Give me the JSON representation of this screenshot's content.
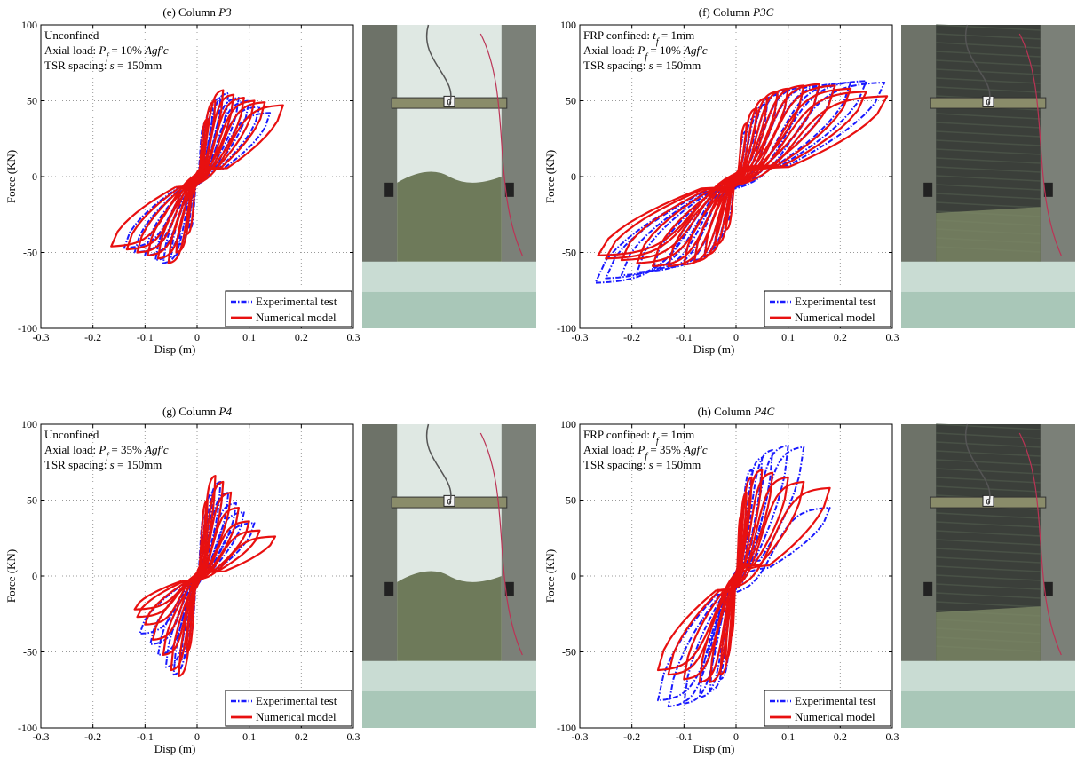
{
  "figure": {
    "panels": [
      {
        "title_prefix": "(e)  Column ",
        "title_name": "P3",
        "annotation_lines": [
          [
            {
              "t": "Unconfined"
            }
          ],
          [
            {
              "t": "Axial load: "
            },
            {
              "t": "P",
              "i": true
            },
            {
              "t": "f",
              "sub": true,
              "i": true
            },
            {
              "t": " = 10% "
            },
            {
              "t": "Agf'c",
              "i": true
            }
          ],
          [
            {
              "t": "TSR spacing: "
            },
            {
              "t": "s",
              "i": true
            },
            {
              "t": " = 150mm"
            }
          ]
        ],
        "legend": [
          "Experimental test",
          "Numerical model"
        ],
        "photo_label": "0"
      },
      {
        "title_prefix": "(f)  Column ",
        "title_name": "P3C",
        "annotation_lines": [
          [
            {
              "t": "FRP confined: "
            },
            {
              "t": "t",
              "i": true
            },
            {
              "t": "f",
              "sub": true,
              "i": true
            },
            {
              "t": " = 1mm"
            }
          ],
          [
            {
              "t": "Axial load: "
            },
            {
              "t": "P",
              "i": true
            },
            {
              "t": "f",
              "sub": true,
              "i": true
            },
            {
              "t": " = 10% "
            },
            {
              "t": "Agf'c",
              "i": true
            }
          ],
          [
            {
              "t": "TSR spacing: "
            },
            {
              "t": "s",
              "i": true
            },
            {
              "t": " = 150mm"
            }
          ]
        ],
        "legend": [
          "Experimental test",
          "Numerical model"
        ],
        "photo_label": "0"
      },
      {
        "title_prefix": "(g)  Column ",
        "title_name": "P4",
        "annotation_lines": [
          [
            {
              "t": "Unconfined"
            }
          ],
          [
            {
              "t": "Axial load: "
            },
            {
              "t": "P",
              "i": true
            },
            {
              "t": "f",
              "sub": true,
              "i": true
            },
            {
              "t": " = 35% "
            },
            {
              "t": "Agf'c",
              "i": true
            }
          ],
          [
            {
              "t": "TSR spacing: "
            },
            {
              "t": "s",
              "i": true
            },
            {
              "t": " = 150mm"
            }
          ]
        ],
        "legend": [
          "Experimental test",
          "Numerical model"
        ],
        "photo_label": "0"
      },
      {
        "title_prefix": "(h)  Column ",
        "title_name": "P4C",
        "annotation_lines": [
          [
            {
              "t": "FRP confined: "
            },
            {
              "t": "t",
              "i": true
            },
            {
              "t": "f",
              "sub": true,
              "i": true
            },
            {
              "t": " = 1mm"
            }
          ],
          [
            {
              "t": "Axial load: "
            },
            {
              "t": "P",
              "i": true
            },
            {
              "t": "f",
              "sub": true,
              "i": true
            },
            {
              "t": " = 35% "
            },
            {
              "t": "Agf'c",
              "i": true
            }
          ],
          [
            {
              "t": "TSR spacing: "
            },
            {
              "t": "s",
              "i": true
            },
            {
              "t": " = 150mm"
            }
          ]
        ],
        "legend": [
          "Experimental test",
          "Numerical model"
        ],
        "photo_label": "0"
      }
    ]
  },
  "colors": {
    "experimental": "#1a1aff",
    "numerical": "#e81010",
    "concrete": "#dfe8e3",
    "frp_wrap": "#3b3f3a",
    "floor": "#c9dcd3"
  },
  "chart_data": [
    {
      "type": "line",
      "title": "(e) Column P3",
      "xlabel": "Disp (m)",
      "ylabel": "Force (KN)",
      "xlim": [
        -0.3,
        0.3
      ],
      "ylim": [
        -100,
        100
      ],
      "xticks": [
        -0.3,
        -0.2,
        -0.1,
        0,
        0.1,
        0.2,
        0.3
      ],
      "yticks": [
        -100,
        -50,
        0,
        50,
        100
      ],
      "grid": true,
      "legend_position": "bottom-right",
      "series": [
        {
          "name": "Experimental test",
          "style": "dash-dot",
          "cycles": [
            [
              0.015,
              35,
              -0.015,
              -35
            ],
            [
              0.03,
              45,
              -0.035,
              -45
            ],
            [
              0.045,
              52,
              -0.05,
              -53
            ],
            [
              0.06,
              55,
              -0.065,
              -57
            ],
            [
              0.08,
              52,
              -0.08,
              -55
            ],
            [
              0.1,
              50,
              -0.1,
              -52
            ],
            [
              0.12,
              46,
              -0.12,
              -50
            ],
            [
              0.14,
              42,
              -0.14,
              -47
            ]
          ]
        },
        {
          "name": "Numerical model",
          "style": "solid",
          "cycles": [
            [
              0.02,
              38,
              -0.02,
              -38
            ],
            [
              0.035,
              50,
              -0.04,
              -50
            ],
            [
              0.05,
              57,
              -0.055,
              -57
            ],
            [
              0.07,
              54,
              -0.075,
              -54
            ],
            [
              0.09,
              52,
              -0.095,
              -52
            ],
            [
              0.11,
              50,
              -0.115,
              -50
            ],
            [
              0.13,
              49,
              -0.135,
              -48
            ],
            [
              0.165,
              47,
              -0.165,
              -46
            ]
          ]
        }
      ]
    },
    {
      "type": "line",
      "title": "(f) Column P3C",
      "xlabel": "Disp (m)",
      "ylabel": "Force (KN)",
      "xlim": [
        -0.3,
        0.3
      ],
      "ylim": [
        -100,
        100
      ],
      "xticks": [
        -0.3,
        -0.2,
        -0.1,
        0,
        0.1,
        0.2,
        0.3
      ],
      "yticks": [
        -100,
        -50,
        0,
        50,
        100
      ],
      "grid": true,
      "legend_position": "bottom-right",
      "series": [
        {
          "name": "Experimental test",
          "style": "dash-dot",
          "cycles": [
            [
              0.02,
              30,
              -0.02,
              -30
            ],
            [
              0.04,
              40,
              -0.04,
              -42
            ],
            [
              0.06,
              48,
              -0.06,
              -50
            ],
            [
              0.08,
              54,
              -0.08,
              -55
            ],
            [
              0.1,
              57,
              -0.1,
              -58
            ],
            [
              0.13,
              59,
              -0.13,
              -60
            ],
            [
              0.16,
              60,
              -0.16,
              -62
            ],
            [
              0.19,
              61,
              -0.19,
              -63
            ],
            [
              0.22,
              62,
              -0.22,
              -65
            ],
            [
              0.25,
              63,
              -0.25,
              -67
            ],
            [
              0.285,
              62,
              -0.27,
              -70
            ]
          ]
        },
        {
          "name": "Numerical model",
          "style": "solid",
          "cycles": [
            [
              0.02,
              35,
              -0.02,
              -35
            ],
            [
              0.04,
              45,
              -0.04,
              -45
            ],
            [
              0.06,
              52,
              -0.06,
              -52
            ],
            [
              0.08,
              56,
              -0.08,
              -56
            ],
            [
              0.1,
              58,
              -0.1,
              -58
            ],
            [
              0.13,
              60,
              -0.13,
              -59
            ],
            [
              0.16,
              61,
              -0.16,
              -59
            ],
            [
              0.19,
              60,
              -0.19,
              -57
            ],
            [
              0.22,
              58,
              -0.22,
              -55
            ],
            [
              0.25,
              56,
              -0.25,
              -54
            ],
            [
              0.29,
              53,
              -0.265,
              -52
            ]
          ]
        }
      ]
    },
    {
      "type": "line",
      "title": "(g) Column P4",
      "xlabel": "Disp (m)",
      "ylabel": "Force (KN)",
      "xlim": [
        -0.3,
        0.3
      ],
      "ylim": [
        -100,
        100
      ],
      "xticks": [
        -0.3,
        -0.2,
        -0.1,
        0,
        0.1,
        0.2,
        0.3
      ],
      "yticks": [
        -100,
        -50,
        0,
        50,
        100
      ],
      "grid": true,
      "legend_position": "bottom-right",
      "series": [
        {
          "name": "Experimental test",
          "style": "dash-dot",
          "cycles": [
            [
              0.015,
              40,
              -0.015,
              -40
            ],
            [
              0.03,
              55,
              -0.03,
              -55
            ],
            [
              0.045,
              62,
              -0.045,
              -65
            ],
            [
              0.06,
              55,
              -0.06,
              -60
            ],
            [
              0.075,
              48,
              -0.075,
              -52
            ],
            [
              0.09,
              42,
              -0.09,
              -45
            ],
            [
              0.11,
              35,
              -0.11,
              -38
            ]
          ]
        },
        {
          "name": "Numerical model",
          "style": "solid",
          "cycles": [
            [
              0.02,
              50,
              -0.02,
              -50
            ],
            [
              0.035,
              66,
              -0.035,
              -66
            ],
            [
              0.05,
              62,
              -0.05,
              -62
            ],
            [
              0.065,
              55,
              -0.065,
              -52
            ],
            [
              0.08,
              45,
              -0.085,
              -42
            ],
            [
              0.1,
              36,
              -0.1,
              -32
            ],
            [
              0.12,
              30,
              -0.115,
              -27
            ],
            [
              0.15,
              26,
              -0.12,
              -22
            ]
          ]
        }
      ]
    },
    {
      "type": "line",
      "title": "(h) Column P4C",
      "xlabel": "Disp (m)",
      "ylabel": "Force (KN)",
      "xlim": [
        -0.3,
        0.3
      ],
      "ylim": [
        -100,
        100
      ],
      "xticks": [
        -0.3,
        -0.2,
        -0.1,
        0,
        0.1,
        0.2,
        0.3
      ],
      "yticks": [
        -100,
        -50,
        0,
        50,
        100
      ],
      "grid": true,
      "legend_position": "bottom-right",
      "series": [
        {
          "name": "Experimental test",
          "style": "dash-dot",
          "cycles": [
            [
              0.01,
              35,
              -0.01,
              -35
            ],
            [
              0.02,
              55,
              -0.02,
              -55
            ],
            [
              0.03,
              70,
              -0.03,
              -68
            ],
            [
              0.05,
              78,
              -0.05,
              -76
            ],
            [
              0.07,
              83,
              -0.07,
              -80
            ],
            [
              0.1,
              86,
              -0.1,
              -84
            ],
            [
              0.13,
              85,
              -0.13,
              -86
            ],
            [
              0.18,
              45,
              -0.15,
              -82
            ]
          ]
        },
        {
          "name": "Numerical model",
          "style": "solid",
          "cycles": [
            [
              0.01,
              40,
              -0.01,
              -40
            ],
            [
              0.02,
              55,
              -0.02,
              -55
            ],
            [
              0.03,
              65,
              -0.03,
              -65
            ],
            [
              0.05,
              70,
              -0.05,
              -70
            ],
            [
              0.07,
              68,
              -0.07,
              -70
            ],
            [
              0.1,
              65,
              -0.1,
              -68
            ],
            [
              0.13,
              62,
              -0.13,
              -65
            ],
            [
              0.18,
              58,
              -0.15,
              -62
            ]
          ]
        }
      ]
    }
  ]
}
